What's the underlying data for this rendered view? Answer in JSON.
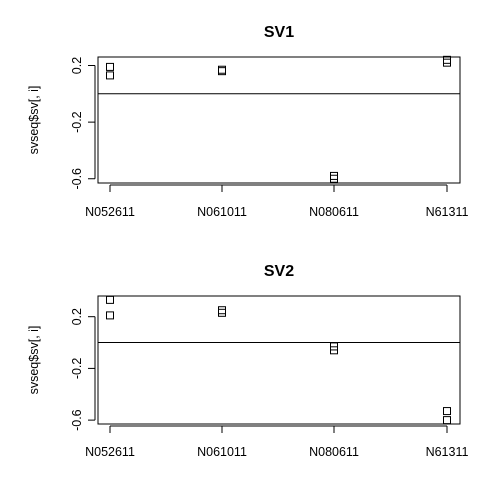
{
  "chart_data": [
    {
      "type": "scatter",
      "title": "SV1",
      "ylabel": "svseq$sv[, i]",
      "xlabel": "",
      "categories": [
        "N052611",
        "N061011",
        "N080611",
        "N61311"
      ],
      "y_ticks": [
        0.2,
        -0.2,
        -0.6
      ],
      "y_tick_labels": [
        "0.2",
        "-0.2",
        "-0.6"
      ],
      "ylim": [
        -0.63,
        0.26
      ],
      "reference_line_y": 0,
      "grid": false,
      "marker": "open-square",
      "points": [
        {
          "category": "N052611",
          "values": [
            0.19,
            0.13
          ]
        },
        {
          "category": "N061011",
          "values": [
            0.17,
            0.16
          ]
        },
        {
          "category": "N080611",
          "values": [
            -0.58,
            -0.6
          ]
        },
        {
          "category": "N61311",
          "values": [
            0.24,
            0.22
          ]
        }
      ]
    },
    {
      "type": "scatter",
      "title": "SV2",
      "ylabel": "svseq$sv[, i]",
      "xlabel": "",
      "categories": [
        "N052611",
        "N061011",
        "N080611",
        "N61311"
      ],
      "y_ticks": [
        0.2,
        -0.2,
        -0.6
      ],
      "y_tick_labels": [
        "0.2",
        "-0.2",
        "-0.6"
      ],
      "ylim": [
        -0.63,
        0.36
      ],
      "reference_line_y": 0,
      "grid": false,
      "marker": "open-square",
      "points": [
        {
          "category": "N052611",
          "values": [
            0.33,
            0.21
          ]
        },
        {
          "category": "N061011",
          "values": [
            0.25,
            0.23
          ]
        },
        {
          "category": "N080611",
          "values": [
            -0.03,
            -0.06
          ]
        },
        {
          "category": "N61311",
          "values": [
            -0.53,
            -0.6
          ]
        }
      ]
    }
  ]
}
